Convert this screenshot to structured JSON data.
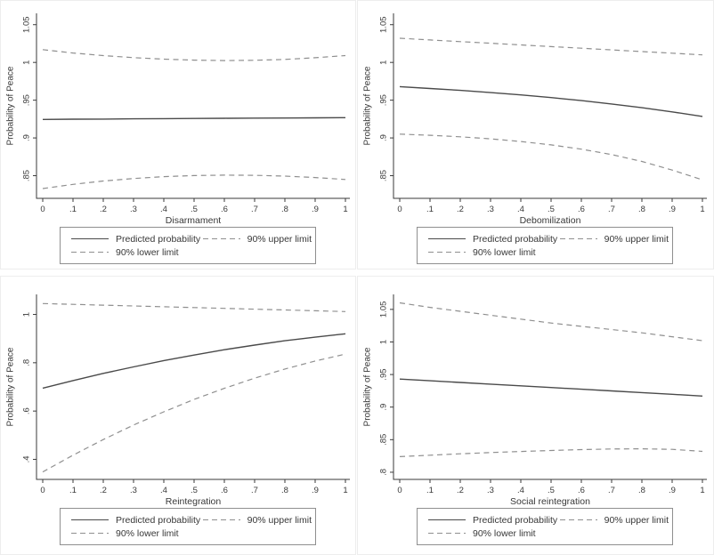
{
  "colors": {
    "solid_line": "#4a4a4a",
    "dashed_line": "#8f8f8f",
    "axis": "#3a3a3a",
    "text": "#383838",
    "legend_border": "#8f8f8f",
    "cell_border": "#ededed",
    "background": "#ffffff"
  },
  "legend": {
    "predicted": "Predicted probability",
    "upper": "90% upper limit",
    "lower": "90% lower limit"
  },
  "chart_data": [
    {
      "type": "line",
      "xlabel": "Disarmament",
      "ylabel": "Probability of Peace",
      "xlim": [
        0,
        1
      ],
      "ylim": [
        0.82,
        1.065
      ],
      "x_tick_values": [
        0,
        0.1,
        0.2,
        0.3,
        0.4,
        0.5,
        0.6,
        0.7,
        0.8,
        0.9,
        1
      ],
      "x_tick_labels": [
        "0",
        ".1",
        ".2",
        ".3",
        ".4",
        ".5",
        ".6",
        ".7",
        ".8",
        ".9",
        "1"
      ],
      "y_tick_values": [
        0.85,
        0.9,
        0.95,
        1,
        1.05
      ],
      "y_tick_labels": [
        ".85",
        ".9",
        ".95",
        "1",
        "1.05"
      ],
      "x": [
        0,
        0.1,
        0.2,
        0.3,
        0.4,
        0.5,
        0.6,
        0.7,
        0.8,
        0.9,
        1
      ],
      "series": [
        {
          "name": "Predicted probability",
          "style": "solid",
          "values": [
            0.9245,
            0.9248,
            0.925,
            0.9253,
            0.9255,
            0.9258,
            0.926,
            0.9262,
            0.9264,
            0.9266,
            0.9268
          ]
        },
        {
          "name": "90% upper limit",
          "style": "dashed",
          "values": [
            1.017,
            1.0125,
            1.009,
            1.0063,
            1.0043,
            1.003,
            1.0025,
            1.0028,
            1.004,
            1.0062,
            1.009
          ]
        },
        {
          "name": "90% lower limit",
          "style": "dashed",
          "values": [
            0.833,
            0.8385,
            0.843,
            0.8463,
            0.8487,
            0.8502,
            0.8508,
            0.8505,
            0.8494,
            0.8476,
            0.845
          ]
        }
      ]
    },
    {
      "type": "line",
      "xlabel": "Debomilization",
      "ylabel": "Probability of Peace",
      "xlim": [
        0,
        1
      ],
      "ylim": [
        0.82,
        1.065
      ],
      "x_tick_values": [
        0,
        0.1,
        0.2,
        0.3,
        0.4,
        0.5,
        0.6,
        0.7,
        0.8,
        0.9,
        1
      ],
      "x_tick_labels": [
        "0",
        ".1",
        ".2",
        ".3",
        ".4",
        ".5",
        ".6",
        ".7",
        ".8",
        ".9",
        "1"
      ],
      "y_tick_values": [
        0.85,
        0.9,
        0.95,
        1,
        1.05
      ],
      "y_tick_labels": [
        ".85",
        ".9",
        ".95",
        "1",
        "1.05"
      ],
      "x": [
        0,
        0.1,
        0.2,
        0.3,
        0.4,
        0.5,
        0.6,
        0.7,
        0.8,
        0.9,
        1
      ],
      "series": [
        {
          "name": "Predicted probability",
          "style": "solid",
          "values": [
            0.968,
            0.9655,
            0.963,
            0.96,
            0.957,
            0.9535,
            0.9495,
            0.945,
            0.94,
            0.9345,
            0.9285
          ]
        },
        {
          "name": "90% upper limit",
          "style": "dashed",
          "values": [
            1.032,
            1.0298,
            1.0276,
            1.0254,
            1.0232,
            1.021,
            1.0188,
            1.0166,
            1.0144,
            1.0122,
            1.01
          ]
        },
        {
          "name": "90% lower limit",
          "style": "dashed",
          "values": [
            0.905,
            0.9035,
            0.9015,
            0.8988,
            0.8953,
            0.8908,
            0.8851,
            0.8779,
            0.8689,
            0.8575,
            0.8445
          ]
        }
      ]
    },
    {
      "type": "line",
      "xlabel": "Reintegration",
      "ylabel": "Probability of Peace",
      "xlim": [
        0,
        1
      ],
      "ylim": [
        0.317,
        1.083
      ],
      "x_tick_values": [
        0,
        0.1,
        0.2,
        0.3,
        0.4,
        0.5,
        0.6,
        0.7,
        0.8,
        0.9,
        1
      ],
      "x_tick_labels": [
        "0",
        ".1",
        ".2",
        ".3",
        ".4",
        ".5",
        ".6",
        ".7",
        ".8",
        ".9",
        "1"
      ],
      "y_tick_values": [
        0.4,
        0.6,
        0.8,
        1
      ],
      "y_tick_labels": [
        ".4",
        ".6",
        ".8",
        "1"
      ],
      "x": [
        0,
        0.1,
        0.2,
        0.3,
        0.4,
        0.5,
        0.6,
        0.7,
        0.8,
        0.9,
        1
      ],
      "series": [
        {
          "name": "Predicted probability",
          "style": "solid",
          "values": [
            0.695,
            0.726,
            0.756,
            0.783,
            0.809,
            0.832,
            0.854,
            0.873,
            0.891,
            0.906,
            0.92
          ]
        },
        {
          "name": "90% upper limit",
          "style": "dashed",
          "values": [
            1.045,
            1.0417,
            1.0384,
            1.0351,
            1.0318,
            1.0285,
            1.0252,
            1.0219,
            1.0186,
            1.0153,
            1.012
          ]
        },
        {
          "name": "90% lower limit",
          "style": "dashed",
          "values": [
            0.348,
            0.417,
            0.482,
            0.542,
            0.597,
            0.648,
            0.694,
            0.736,
            0.774,
            0.807,
            0.836
          ]
        }
      ]
    },
    {
      "type": "line",
      "xlabel": "Social reintegration",
      "ylabel": "Probability of Peace",
      "xlim": [
        0,
        1
      ],
      "ylim": [
        0.789,
        1.073
      ],
      "x_tick_values": [
        0,
        0.1,
        0.2,
        0.3,
        0.4,
        0.5,
        0.6,
        0.7,
        0.8,
        0.9,
        1
      ],
      "x_tick_labels": [
        "0",
        ".1",
        ".2",
        ".3",
        ".4",
        ".5",
        ".6",
        ".7",
        ".8",
        ".9",
        "1"
      ],
      "y_tick_values": [
        0.8,
        0.85,
        0.9,
        0.95,
        1,
        1.05
      ],
      "y_tick_labels": [
        ".8",
        ".85",
        ".9",
        ".95",
        "1",
        "1.05"
      ],
      "x": [
        0,
        0.1,
        0.2,
        0.3,
        0.4,
        0.5,
        0.6,
        0.7,
        0.8,
        0.9,
        1
      ],
      "series": [
        {
          "name": "Predicted probability",
          "style": "solid",
          "values": [
            0.943,
            0.9404,
            0.9378,
            0.9352,
            0.9326,
            0.93,
            0.9274,
            0.9248,
            0.9222,
            0.9196,
            0.917
          ]
        },
        {
          "name": "90% upper limit",
          "style": "dashed",
          "values": [
            1.06,
            1.053,
            1.047,
            1.041,
            1.035,
            1.029,
            1.024,
            1.019,
            1.014,
            1.008,
            1.002
          ]
        },
        {
          "name": "90% lower limit",
          "style": "dashed",
          "values": [
            0.824,
            0.8262,
            0.8283,
            0.8302,
            0.8319,
            0.8334,
            0.8347,
            0.8357,
            0.836,
            0.8352,
            0.832
          ]
        }
      ]
    }
  ]
}
